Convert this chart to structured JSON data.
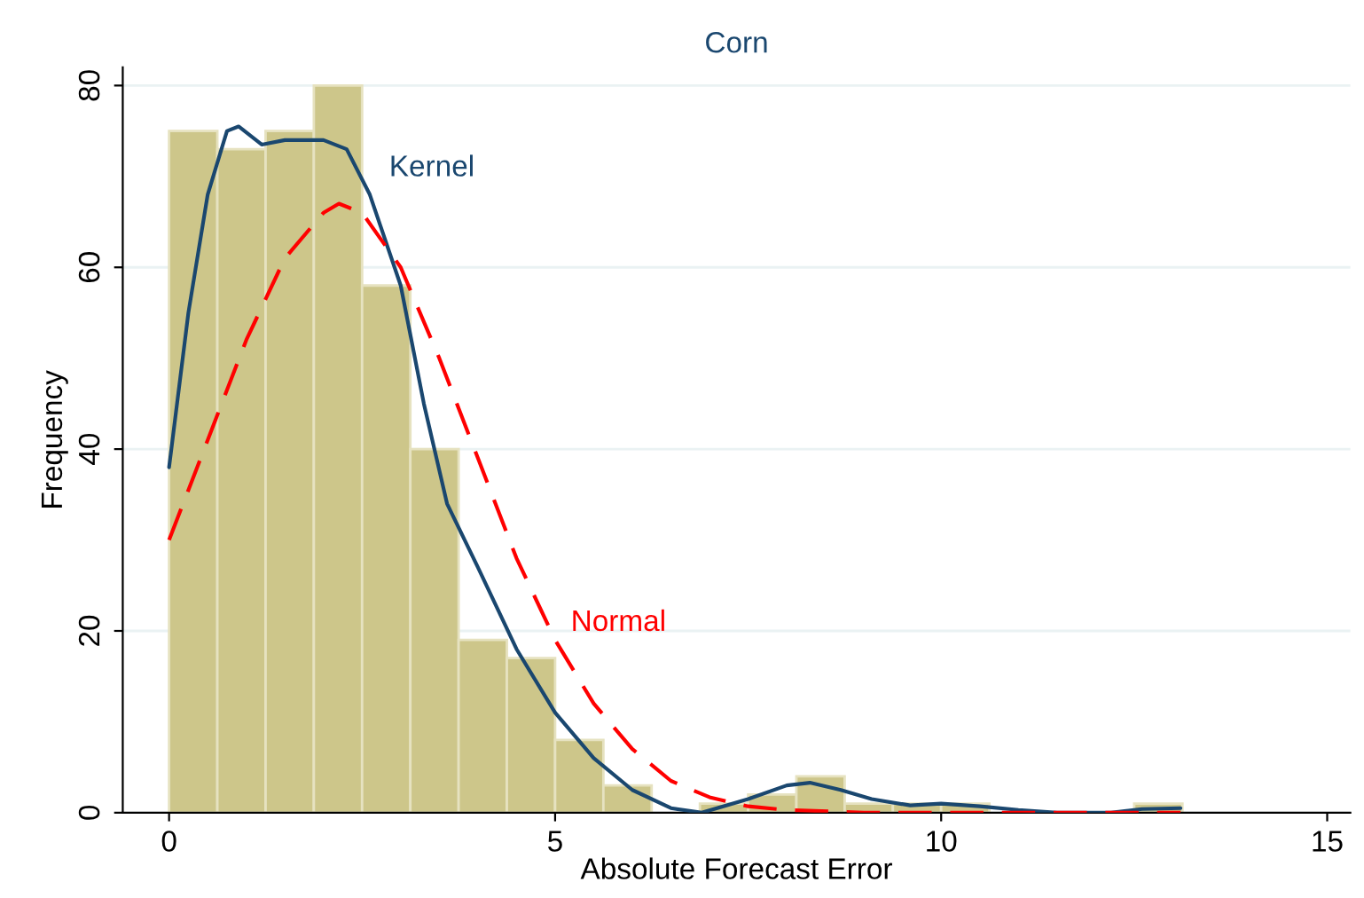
{
  "chart_data": {
    "type": "histogram",
    "title": "Corn",
    "xlabel": "Absolute Forecast Error",
    "ylabel": "Frequency",
    "bins": [
      0,
      0.625,
      1.25,
      1.875,
      2.5,
      3.125,
      3.75,
      4.375,
      5,
      5.625,
      6.25,
      6.875,
      7.5,
      8.125,
      8.75,
      9.375,
      10,
      10.625,
      11.25,
      11.875,
      12.5,
      13.125
    ],
    "values": [
      75,
      73,
      75,
      80,
      58,
      40,
      19,
      17,
      8,
      3,
      0,
      1,
      2,
      4,
      1,
      1,
      1,
      0,
      0,
      0,
      1
    ],
    "color": "#cdc68a",
    "series": [
      {
        "name": "Kernel",
        "type": "line",
        "color": "#1a476f",
        "line_style": "solid",
        "x": [
          0,
          0.25,
          0.5,
          0.75,
          0.9,
          1.2,
          1.5,
          2,
          2.3,
          2.6,
          3,
          3.3,
          3.6,
          4,
          4.5,
          5,
          5.5,
          6,
          6.5,
          6.9,
          7.5,
          8,
          8.3,
          8.7,
          9.1,
          9.6,
          10,
          10.5,
          11,
          11.5,
          12.2,
          12.6,
          13.1
        ],
        "values": [
          38,
          55,
          68,
          75,
          75.5,
          73.5,
          74,
          74,
          73,
          68,
          58,
          45,
          34,
          27,
          18,
          11,
          6,
          2.5,
          0.5,
          0,
          1.5,
          3,
          3.3,
          2.5,
          1.5,
          0.8,
          1,
          0.7,
          0.3,
          0,
          0,
          0.4,
          0.5
        ]
      },
      {
        "name": "Normal",
        "type": "line",
        "color": "#ff0000",
        "line_style": "dashed",
        "x": [
          0,
          0.5,
          1,
          1.5,
          2,
          2.2,
          2.5,
          3,
          3.5,
          4,
          4.5,
          5,
          5.5,
          6,
          6.5,
          7,
          7.5,
          8,
          9,
          13.1
        ],
        "values": [
          30,
          41,
          52,
          61,
          66,
          67,
          66,
          60,
          50,
          39,
          28,
          19,
          12,
          7,
          3.5,
          1.7,
          0.7,
          0.3,
          0,
          0
        ]
      }
    ],
    "xlim": [
      -0.6,
      15.3
    ],
    "ylim": [
      0,
      82
    ],
    "xticks": [
      0,
      5,
      10,
      15
    ],
    "yticks": [
      0,
      20,
      40,
      60,
      80
    ],
    "grid": "y",
    "legend": false
  }
}
